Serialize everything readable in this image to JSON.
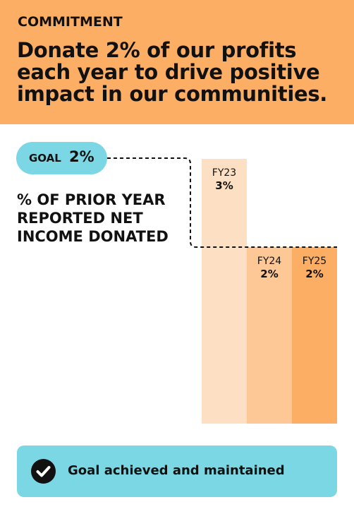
{
  "header": {
    "kicker": "COMMITMENT",
    "headline": "Donate 2% of our profits each year to drive positive impact in our communities."
  },
  "goal": {
    "label": "GOAL",
    "value": "2%"
  },
  "metric_label": "% OF PRIOR YEAR REPORTED NET INCOME DONATED",
  "chart_data": {
    "type": "bar",
    "categories": [
      "FY23",
      "FY24",
      "FY25"
    ],
    "values": [
      3,
      2,
      2
    ],
    "value_labels": [
      "3%",
      "2%",
      "2%"
    ],
    "goal": 2,
    "ylim": [
      0,
      3
    ],
    "colors": [
      "#fde0c4",
      "#fdc796",
      "#fcae65"
    ],
    "goal_line": "dashed"
  },
  "footer": {
    "text": "Goal achieved and maintained",
    "icon": "check-circle-icon"
  },
  "colors": {
    "accent_orange": "#fcae65",
    "accent_teal": "#7ad7e3",
    "text": "#111111"
  }
}
